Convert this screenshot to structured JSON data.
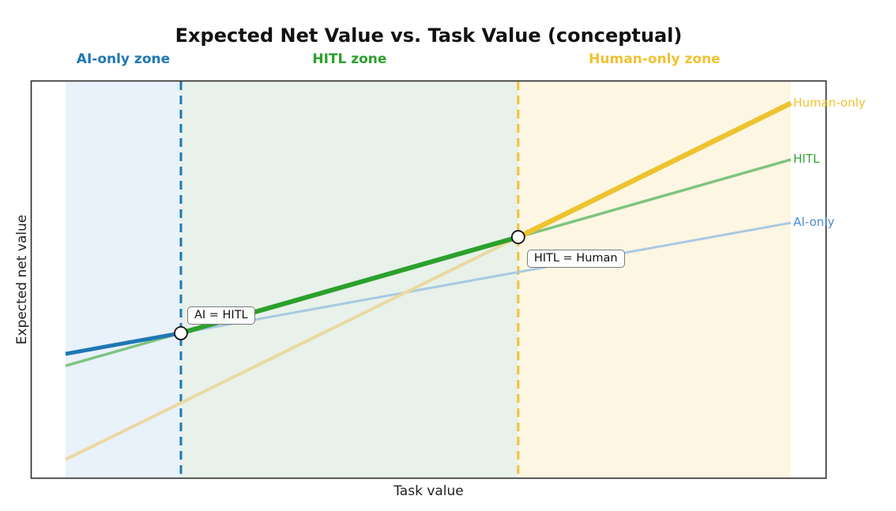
{
  "figure": {
    "title": "Expected Net Value vs. Task Value (conceptual)",
    "xlabel": "Task value",
    "ylabel": "Expected net value"
  },
  "chart_data": {
    "type": "line",
    "title": "Expected Net Value vs. Task Value (conceptual)",
    "xlabel": "Task value",
    "ylabel": "Expected net value",
    "x_range": [
      0,
      10
    ],
    "y_range": [
      0,
      10
    ],
    "axis_tick_labels": "none (conceptual axes, no ticks shown)",
    "grid": false,
    "series": [
      {
        "name": "AI-only",
        "y_at_x0": 3.14,
        "y_at_x10": 6.44,
        "color": "#1f77b4",
        "muted_color": "#a9c9e2",
        "label_color": "#4a8fcd",
        "bold_segment": "x 0 to 1.59 (where AI-only is the best option)"
      },
      {
        "name": "HITL",
        "y_at_x0": 2.84,
        "y_at_x10": 8.03,
        "color": "#2ca02c",
        "muted_color": "#7fc47f",
        "label_color": "#37a437",
        "bold_segment": "x 1.59 to 6.24 (where HITL is the best option)"
      },
      {
        "name": "Human-only",
        "y_at_x0": 0.48,
        "y_at_x10": 9.45,
        "color": "#eec32f",
        "muted_color": "#ead9a0",
        "label_color": "#f0c233",
        "bold_segment": "x 6.24 to 10 (where Human-only is the best option)"
      }
    ],
    "crossovers": [
      {
        "between": [
          "AI-only",
          "HITL"
        ],
        "label": "AI = HITL",
        "x": 1.59,
        "y": 3.66,
        "dash_color": "#1f77b4"
      },
      {
        "between": [
          "HITL",
          "Human-only"
        ],
        "label": "HITL = Human",
        "x": 6.24,
        "y": 6.08,
        "dash_color": "#f0c23a"
      }
    ],
    "zones": [
      {
        "label": "AI-only zone",
        "x_start": 0,
        "x_end": 1.59,
        "fill": "#e9f1fb",
        "label_color": "#1f77b4"
      },
      {
        "label": "HITL zone",
        "x_start": 1.59,
        "x_end": 6.24,
        "fill": "#e8f1ea",
        "label_color": "#2ca02c"
      },
      {
        "label": "Human-only zone",
        "x_start": 6.24,
        "x_end": 10,
        "fill": "#fdf6e3",
        "label_color": "#f0c233"
      }
    ],
    "markers": {
      "style": "circle at each crossover",
      "fill": "#ffffff",
      "edge": "#111111"
    }
  }
}
